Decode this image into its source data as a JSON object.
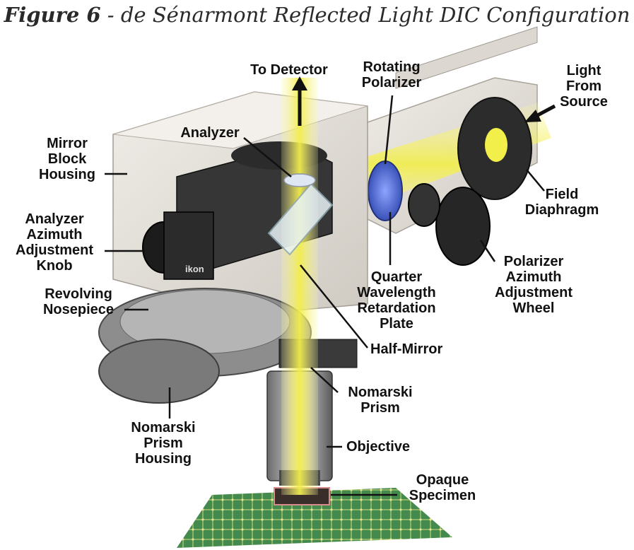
{
  "figure": {
    "number": "Figure 6",
    "caption": " - de Sénarmont Reflected Light DIC Configuration"
  },
  "labels": {
    "to_detector": "To Detector",
    "rotating_polarizer": "Rotating\nPolarizer",
    "light_from_source": "Light\nFrom\nSource",
    "mirror_block_housing": "Mirror\nBlock\nHousing",
    "analyzer": "Analyzer",
    "field_diaphragm": "Field\nDiaphragm",
    "analyzer_knob": "Analyzer\nAzimuth\nAdjustment\nKnob",
    "quarter_wave_plate": "Quarter\nWavelength\nRetardation\nPlate",
    "polarizer_wheel": "Polarizer\nAzimuth\nAdjustment\nWheel",
    "revolving_nosepiece": "Revolving\nNosepiece",
    "half_mirror": "Half-Mirror",
    "nomarski_prism": "Nomarski\nPrism",
    "nomarski_prism_housing": "Nomarski\nPrism\nHousing",
    "objective": "Objective",
    "opaque_specimen": "Opaque\nSpecimen"
  },
  "knob_text": "ikon",
  "colors": {
    "light_beam": "#f2ee4a",
    "housing": "#e6e2dc",
    "dark_metal": "#2b2b2b",
    "polarizer_blue": "#4a63c8",
    "circuit_green": "#2f7d3a"
  }
}
